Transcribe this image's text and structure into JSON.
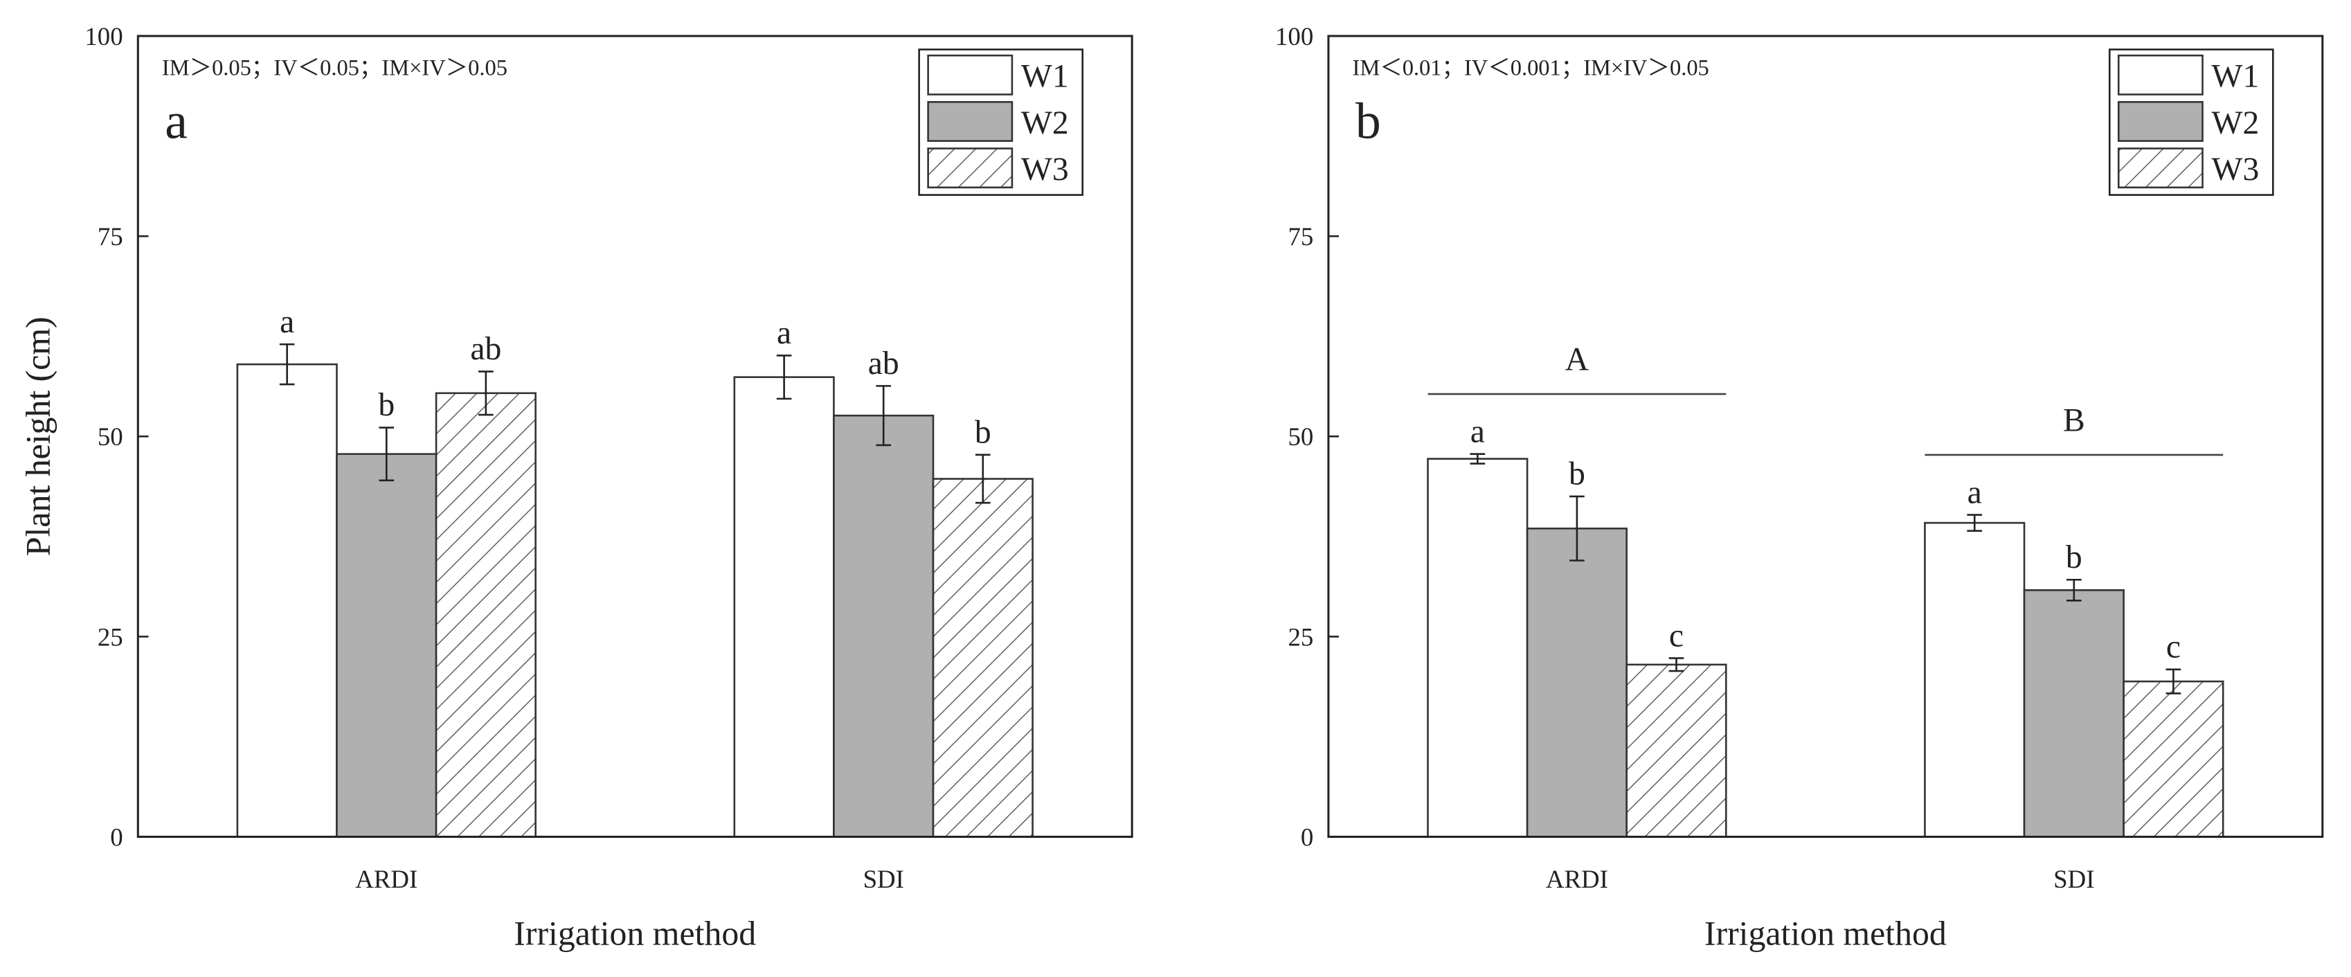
{
  "chart_data": [
    {
      "type": "bar",
      "panel_label": "a",
      "annotation": "IM＞0.05；IV＜0.05；IM×IV＞0.05",
      "x_label": "Irrigation method",
      "y_label": "Plant height (cm)",
      "categories": [
        "ARDI",
        "SDI"
      ],
      "ylim": [
        0,
        100
      ],
      "yticks": [
        0,
        25,
        50,
        75,
        100
      ],
      "series": [
        {
          "name": "W1",
          "color": "#ffffff",
          "hatch": false,
          "values": [
            59,
            57.4
          ],
          "errors": [
            2.5,
            2.7
          ],
          "letters": [
            "a",
            "a"
          ]
        },
        {
          "name": "W2",
          "color": "#b0b0b0",
          "hatch": false,
          "values": [
            47.8,
            52.6
          ],
          "errors": [
            3.3,
            3.7
          ],
          "letters": [
            "b",
            "ab"
          ]
        },
        {
          "name": "W3",
          "color": "#ffffff",
          "hatch": true,
          "values": [
            55.4,
            44.7
          ],
          "errors": [
            2.7,
            3.0
          ],
          "letters": [
            "ab",
            "b"
          ]
        }
      ]
    },
    {
      "type": "bar",
      "panel_label": "b",
      "annotation": "IM＜0.01；IV＜0.001；IM×IV＞0.05",
      "x_label": "Irrigation method",
      "y_label": "Plant height (cm)",
      "categories": [
        "ARDI",
        "SDI"
      ],
      "ylim": [
        0,
        100
      ],
      "yticks": [
        0,
        25,
        50,
        75,
        100
      ],
      "group_letters": [
        "A",
        "B"
      ],
      "series": [
        {
          "name": "W1",
          "color": "#ffffff",
          "hatch": false,
          "values": [
            47.2,
            39.2
          ],
          "errors": [
            0.6,
            1.0
          ],
          "letters": [
            "a",
            "a"
          ]
        },
        {
          "name": "W2",
          "color": "#b0b0b0",
          "hatch": false,
          "values": [
            38.5,
            30.8
          ],
          "errors": [
            4.0,
            1.3
          ],
          "letters": [
            "b",
            "b"
          ]
        },
        {
          "name": "W3",
          "color": "#ffffff",
          "hatch": true,
          "values": [
            21.5,
            19.4
          ],
          "errors": [
            0.8,
            1.5
          ],
          "letters": [
            "c",
            "c"
          ]
        }
      ]
    }
  ]
}
